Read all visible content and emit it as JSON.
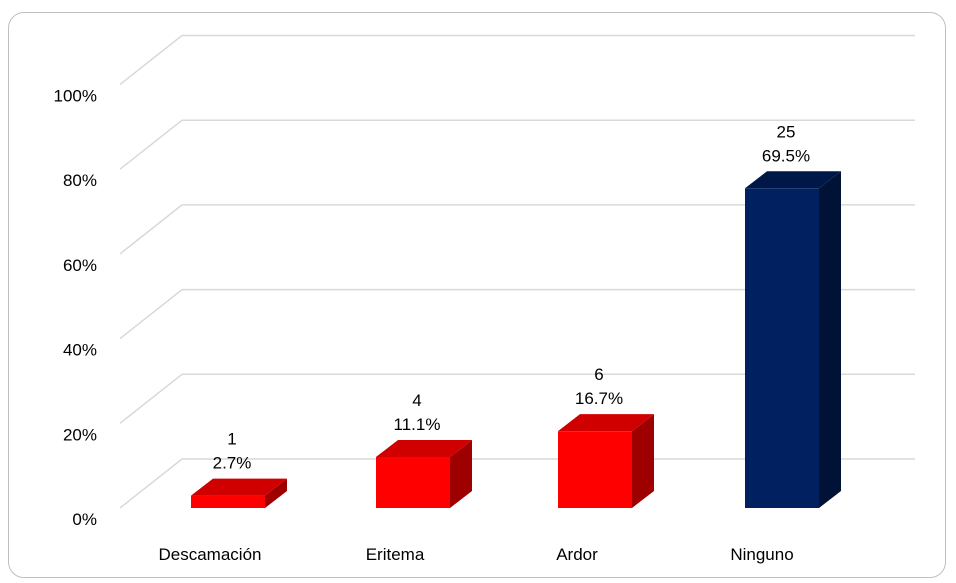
{
  "chart_data": {
    "type": "bar",
    "categories": [
      "Descamación",
      "Eritema",
      "Ardor",
      "Ninguno"
    ],
    "counts": [
      1,
      4,
      6,
      25
    ],
    "values": [
      2.7,
      11.1,
      16.7,
      69.5
    ],
    "count_labels": [
      "1",
      "4",
      "6",
      "25"
    ],
    "percent_labels": [
      "2.7%",
      "11.1%",
      "16.7%",
      "69.5%"
    ],
    "yticks": [
      "0%",
      "20%",
      "40%",
      "60%",
      "80%",
      "100%"
    ],
    "ylim": [
      0,
      100
    ],
    "grid": true,
    "style": "3d-column",
    "colors": [
      "#ff0000",
      "#ff0000",
      "#ff0000",
      "#002060"
    ]
  }
}
